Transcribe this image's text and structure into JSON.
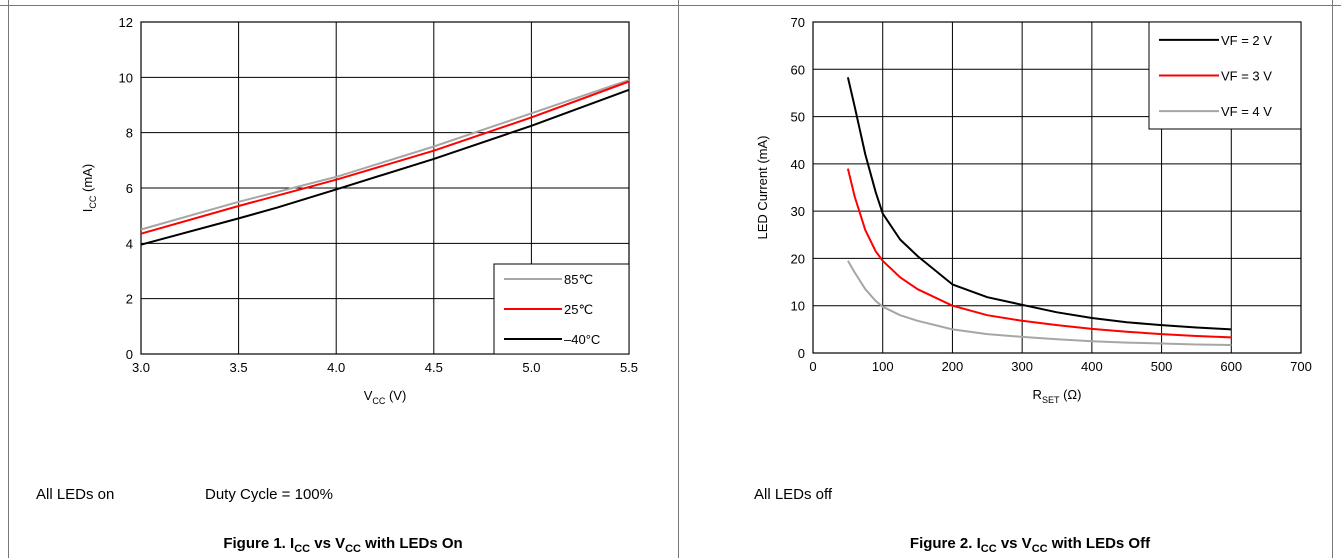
{
  "figures": [
    {
      "note_left": "All LEDs on",
      "note_right": "Duty Cycle = 100%",
      "caption_prefix": "Figure 1. I",
      "caption_sub1": "CC",
      "caption_mid": " vs V",
      "caption_sub2": "CC",
      "caption_suffix": " with LEDs On"
    },
    {
      "note_left": "All LEDs off",
      "caption_prefix": "Figure 2. I",
      "caption_sub1": "CC",
      "caption_mid": " vs V",
      "caption_sub2": "CC",
      "caption_suffix": " with LEDs Off"
    }
  ],
  "chart_data": [
    {
      "type": "line",
      "xlabel": "V",
      "xlabel_sub": "CC",
      "xlabel_unit": " (V)",
      "ylabel": "I",
      "ylabel_sub": "CC",
      "ylabel_unit": " (mA)",
      "xlim": [
        3.0,
        5.5
      ],
      "ylim": [
        0,
        12
      ],
      "xticks": [
        "3.0",
        "3.5",
        "4.0",
        "4.5",
        "5.0",
        "5.5"
      ],
      "yticks": [
        "0",
        "2",
        "4",
        "6",
        "8",
        "10",
        "12"
      ],
      "grid": true,
      "legend_position": "bottom-right",
      "series": [
        {
          "name": "85℃",
          "color": "#a6a6a6",
          "points": [
            [
              3.0,
              4.5
            ],
            [
              3.5,
              5.5
            ],
            [
              4.0,
              6.4
            ],
            [
              4.5,
              7.5
            ],
            [
              5.0,
              8.7
            ],
            [
              5.5,
              9.9
            ]
          ]
        },
        {
          "name": "25℃",
          "color": "#ff0000",
          "points": [
            [
              3.0,
              4.35
            ],
            [
              3.5,
              5.35
            ],
            [
              4.0,
              6.3
            ],
            [
              4.5,
              7.35
            ],
            [
              5.0,
              8.55
            ],
            [
              5.5,
              9.85
            ]
          ]
        },
        {
          "name": "–40°C",
          "color": "#000000",
          "points": [
            [
              3.0,
              3.95
            ],
            [
              3.5,
              4.9
            ],
            [
              3.7,
              5.3
            ],
            [
              4.0,
              5.95
            ],
            [
              4.5,
              7.05
            ],
            [
              5.0,
              8.25
            ],
            [
              5.5,
              9.55
            ]
          ]
        }
      ]
    },
    {
      "type": "line",
      "xlabel": "R",
      "xlabel_sub": "SET",
      "xlabel_unit": " (Ω)",
      "ylabel": "LED Current (mA)",
      "xlim": [
        0,
        700
      ],
      "ylim": [
        0,
        70
      ],
      "xticks": [
        "0",
        "100",
        "200",
        "300",
        "400",
        "500",
        "600",
        "700"
      ],
      "yticks": [
        "0",
        "10",
        "20",
        "30",
        "40",
        "50",
        "60",
        "70"
      ],
      "grid": true,
      "legend_position": "top-right",
      "series": [
        {
          "name": "VF = 2 V",
          "color": "#000000",
          "points": [
            [
              50,
              58.3
            ],
            [
              60,
              52
            ],
            [
              75,
              42
            ],
            [
              90,
              34
            ],
            [
              100,
              29.5
            ],
            [
              125,
              24
            ],
            [
              150,
              20.5
            ],
            [
              200,
              14.5
            ],
            [
              250,
              11.8
            ],
            [
              300,
              10.2
            ],
            [
              350,
              8.6
            ],
            [
              400,
              7.4
            ],
            [
              450,
              6.5
            ],
            [
              500,
              5.9
            ],
            [
              550,
              5.4
            ],
            [
              600,
              5.0
            ]
          ]
        },
        {
          "name": "VF = 3 V",
          "color": "#ff0000",
          "points": [
            [
              50,
              39
            ],
            [
              60,
              33
            ],
            [
              75,
              26
            ],
            [
              90,
              21.5
            ],
            [
              100,
              19.5
            ],
            [
              125,
              16
            ],
            [
              150,
              13.5
            ],
            [
              200,
              10
            ],
            [
              250,
              8
            ],
            [
              300,
              6.8
            ],
            [
              350,
              5.9
            ],
            [
              400,
              5.1
            ],
            [
              450,
              4.5
            ],
            [
              500,
              4.0
            ],
            [
              550,
              3.6
            ],
            [
              600,
              3.3
            ]
          ]
        },
        {
          "name": "VF = 4 V",
          "color": "#a6a6a6",
          "points": [
            [
              50,
              19.5
            ],
            [
              60,
              17
            ],
            [
              75,
              13.5
            ],
            [
              90,
              11
            ],
            [
              100,
              9.8
            ],
            [
              125,
              8
            ],
            [
              150,
              6.8
            ],
            [
              200,
              5.0
            ],
            [
              250,
              4.0
            ],
            [
              300,
              3.4
            ],
            [
              350,
              2.9
            ],
            [
              400,
              2.5
            ],
            [
              450,
              2.2
            ],
            [
              500,
              2.0
            ],
            [
              550,
              1.8
            ],
            [
              600,
              1.7
            ]
          ]
        }
      ]
    }
  ]
}
